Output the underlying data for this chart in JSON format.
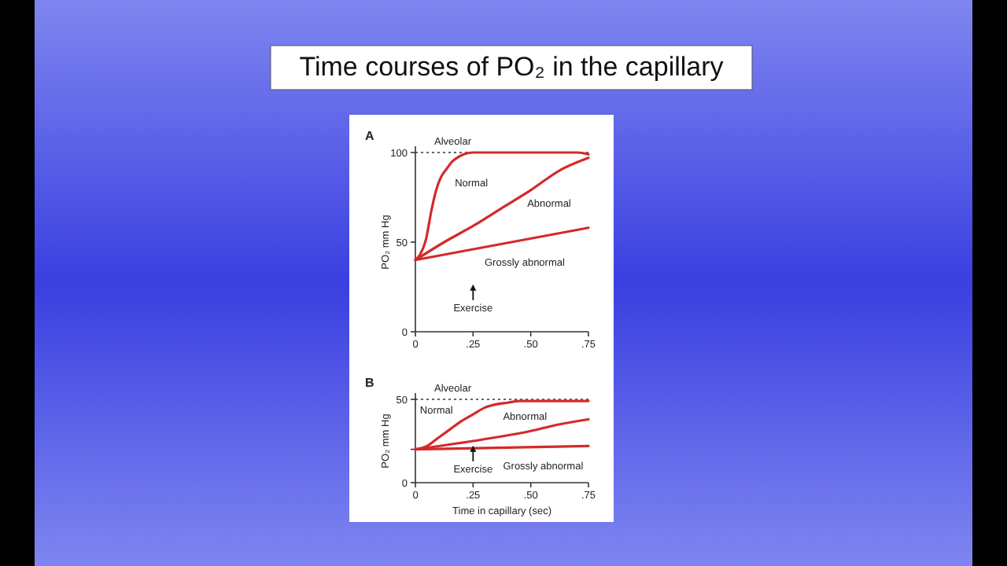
{
  "chart_data": [
    {
      "type": "line",
      "title": "Time courses of PO₂ in the capillary",
      "subtitle": "A",
      "ylabel": "PO₂ mm Hg",
      "xlim": [
        0,
        0.75
      ],
      "xticks": [
        0,
        {
          "value": 0.25,
          "label": ".25"
        },
        {
          "value": 0.5,
          "label": ".50"
        },
        {
          "value": 0.75,
          "label": ".75"
        }
      ],
      "ylim": [
        0,
        100
      ],
      "yticks": [
        0,
        50,
        100
      ],
      "grid": false,
      "legend": false,
      "marker": "none",
      "line_style": "solid",
      "ref_lines": [
        {
          "axis": "y",
          "value": 100,
          "label": "Alveolar",
          "line_style": "dotted",
          "color": "#333333"
        }
      ],
      "annotations": [
        "Exercise"
      ],
      "series": [
        {
          "name": "Normal",
          "color": "#d42a2a",
          "x": [
            0,
            0.02,
            0.045,
            0.07,
            0.09,
            0.11,
            0.136,
            0.16,
            0.18,
            0.21,
            0.25,
            0.3,
            0.5,
            0.7,
            0.75
          ],
          "values": [
            40,
            43,
            51,
            68,
            79,
            86,
            91,
            95,
            97,
            99,
            100,
            100,
            100,
            100,
            99
          ]
        },
        {
          "name": "Abnormal",
          "color": "#d42a2a",
          "x": [
            0,
            0.125,
            0.25,
            0.375,
            0.5,
            0.625,
            0.75
          ],
          "values": [
            40,
            50,
            59,
            69,
            79,
            90,
            97
          ]
        },
        {
          "name": "Grossly abnormal",
          "color": "#d42a2a",
          "x": [
            0,
            0.75
          ],
          "values": [
            40,
            58
          ]
        }
      ]
    },
    {
      "type": "line",
      "subtitle": "B",
      "xlabel": "Time in capillary (sec)",
      "ylabel": "PO₂ mm Hg",
      "xlim": [
        0,
        0.75
      ],
      "xticks": [
        0,
        {
          "value": 0.25,
          "label": ".25"
        },
        {
          "value": 0.5,
          "label": ".50"
        },
        {
          "value": 0.75,
          "label": ".75"
        }
      ],
      "ylim": [
        0,
        50
      ],
      "yticks": [
        0,
        {
          "value": 20,
          "label": null
        },
        50
      ],
      "grid": false,
      "legend": false,
      "marker": "none",
      "line_style": "solid",
      "ref_lines": [
        {
          "axis": "y",
          "value": 50,
          "label": "Alveolar",
          "line_style": "dotted",
          "color": "#333333"
        }
      ],
      "annotations": [
        "Exercise"
      ],
      "series": [
        {
          "name": "Normal",
          "color": "#d42a2a",
          "x": [
            0,
            0.05,
            0.1,
            0.15,
            0.2,
            0.25,
            0.3,
            0.35,
            0.4,
            0.45,
            0.75
          ],
          "values": [
            20,
            22,
            27,
            32,
            37,
            41,
            45,
            47,
            48,
            49,
            49
          ]
        },
        {
          "name": "Abnormal",
          "color": "#d42a2a",
          "x": [
            0,
            0.25,
            0.5,
            0.625,
            0.75
          ],
          "values": [
            20,
            25,
            31,
            35,
            38
          ]
        },
        {
          "name": "Grossly abnormal",
          "color": "#d42a2a",
          "x": [
            0,
            0.75
          ],
          "values": [
            20,
            22
          ]
        }
      ]
    }
  ]
}
